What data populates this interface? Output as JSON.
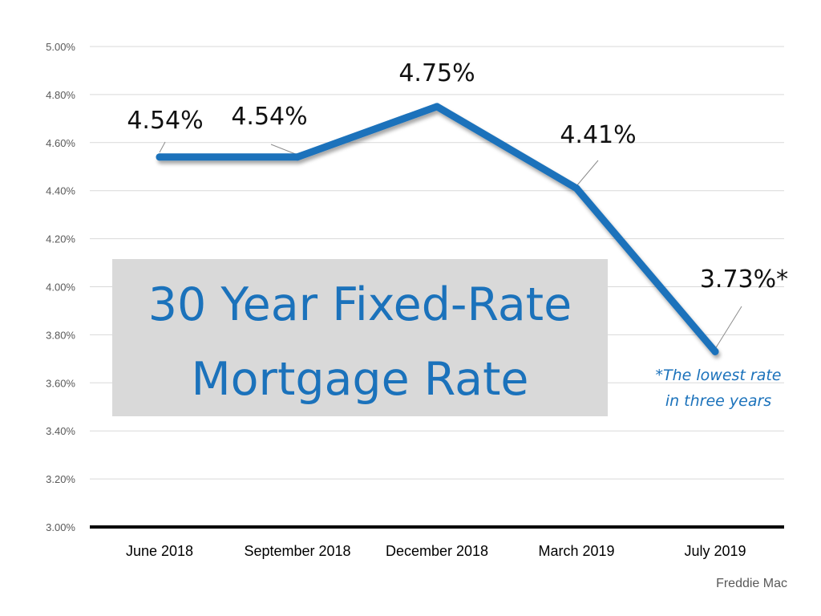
{
  "chart_data": {
    "type": "line",
    "title_lines": [
      "30 Year Fixed-Rate",
      "Mortgage Rate"
    ],
    "categories": [
      "June 2018",
      "September 2018",
      "December 2018",
      "March 2019",
      "July 2019"
    ],
    "series": [
      {
        "values": [
          4.54,
          4.54,
          4.75,
          4.41,
          3.73
        ]
      }
    ],
    "data_labels": [
      "4.54%",
      "4.54%",
      "4.75%",
      "4.41%",
      "3.73%*"
    ],
    "y_ticks": [
      "3.00%",
      "3.20%",
      "3.40%",
      "3.60%",
      "3.80%",
      "4.00%",
      "4.20%",
      "4.40%",
      "4.60%",
      "4.80%",
      "5.00%"
    ],
    "ylim": [
      3.0,
      5.0
    ],
    "grid": true,
    "annotation_lines": [
      "*The lowest rate",
      "in three years"
    ],
    "source": "Freddie Mac",
    "colors": {
      "line": "#1b72bb",
      "title_box": "#d9d9d9",
      "title_text": "#1b72bb",
      "axis": "#000000",
      "grid": "#d9d9d9"
    }
  }
}
